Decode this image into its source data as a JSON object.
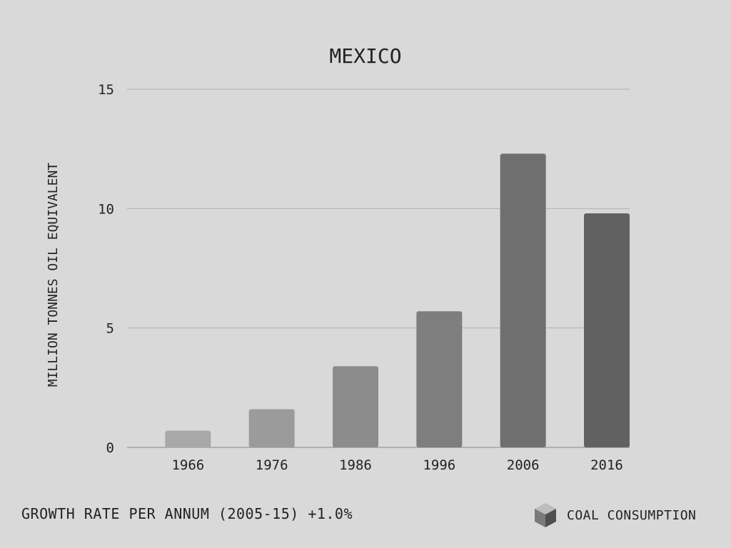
{
  "chart_data": {
    "type": "bar",
    "title": "MEXICO",
    "xlabel": "",
    "ylabel": "MILLION TONNES OIL EQUIVALENT",
    "categories": [
      "1966",
      "1976",
      "1986",
      "1996",
      "2006",
      "2016"
    ],
    "values": [
      0.7,
      1.6,
      3.4,
      5.7,
      12.3,
      9.8
    ],
    "ylim": [
      0,
      15
    ],
    "yticks": [
      0,
      5,
      10,
      15
    ],
    "grid": true,
    "bar_colors": [
      "#a8a8a8",
      "#9b9b9b",
      "#8c8c8c",
      "#7e7e7e",
      "#6f6f6f",
      "#616161"
    ]
  },
  "footer": {
    "growth_rate": "GROWTH RATE PER ANNUM (2005-15) +1.0%",
    "legend_label": "COAL CONSUMPTION",
    "legend_icon": "cube-icon"
  },
  "colors": {
    "background": "#d9d9d9",
    "text": "#222222",
    "grid": "#b0b0b0",
    "axis": "#888888",
    "cube_top": "#bdbdbd",
    "cube_left": "#7a7a7a",
    "cube_right": "#4f4f4f"
  }
}
